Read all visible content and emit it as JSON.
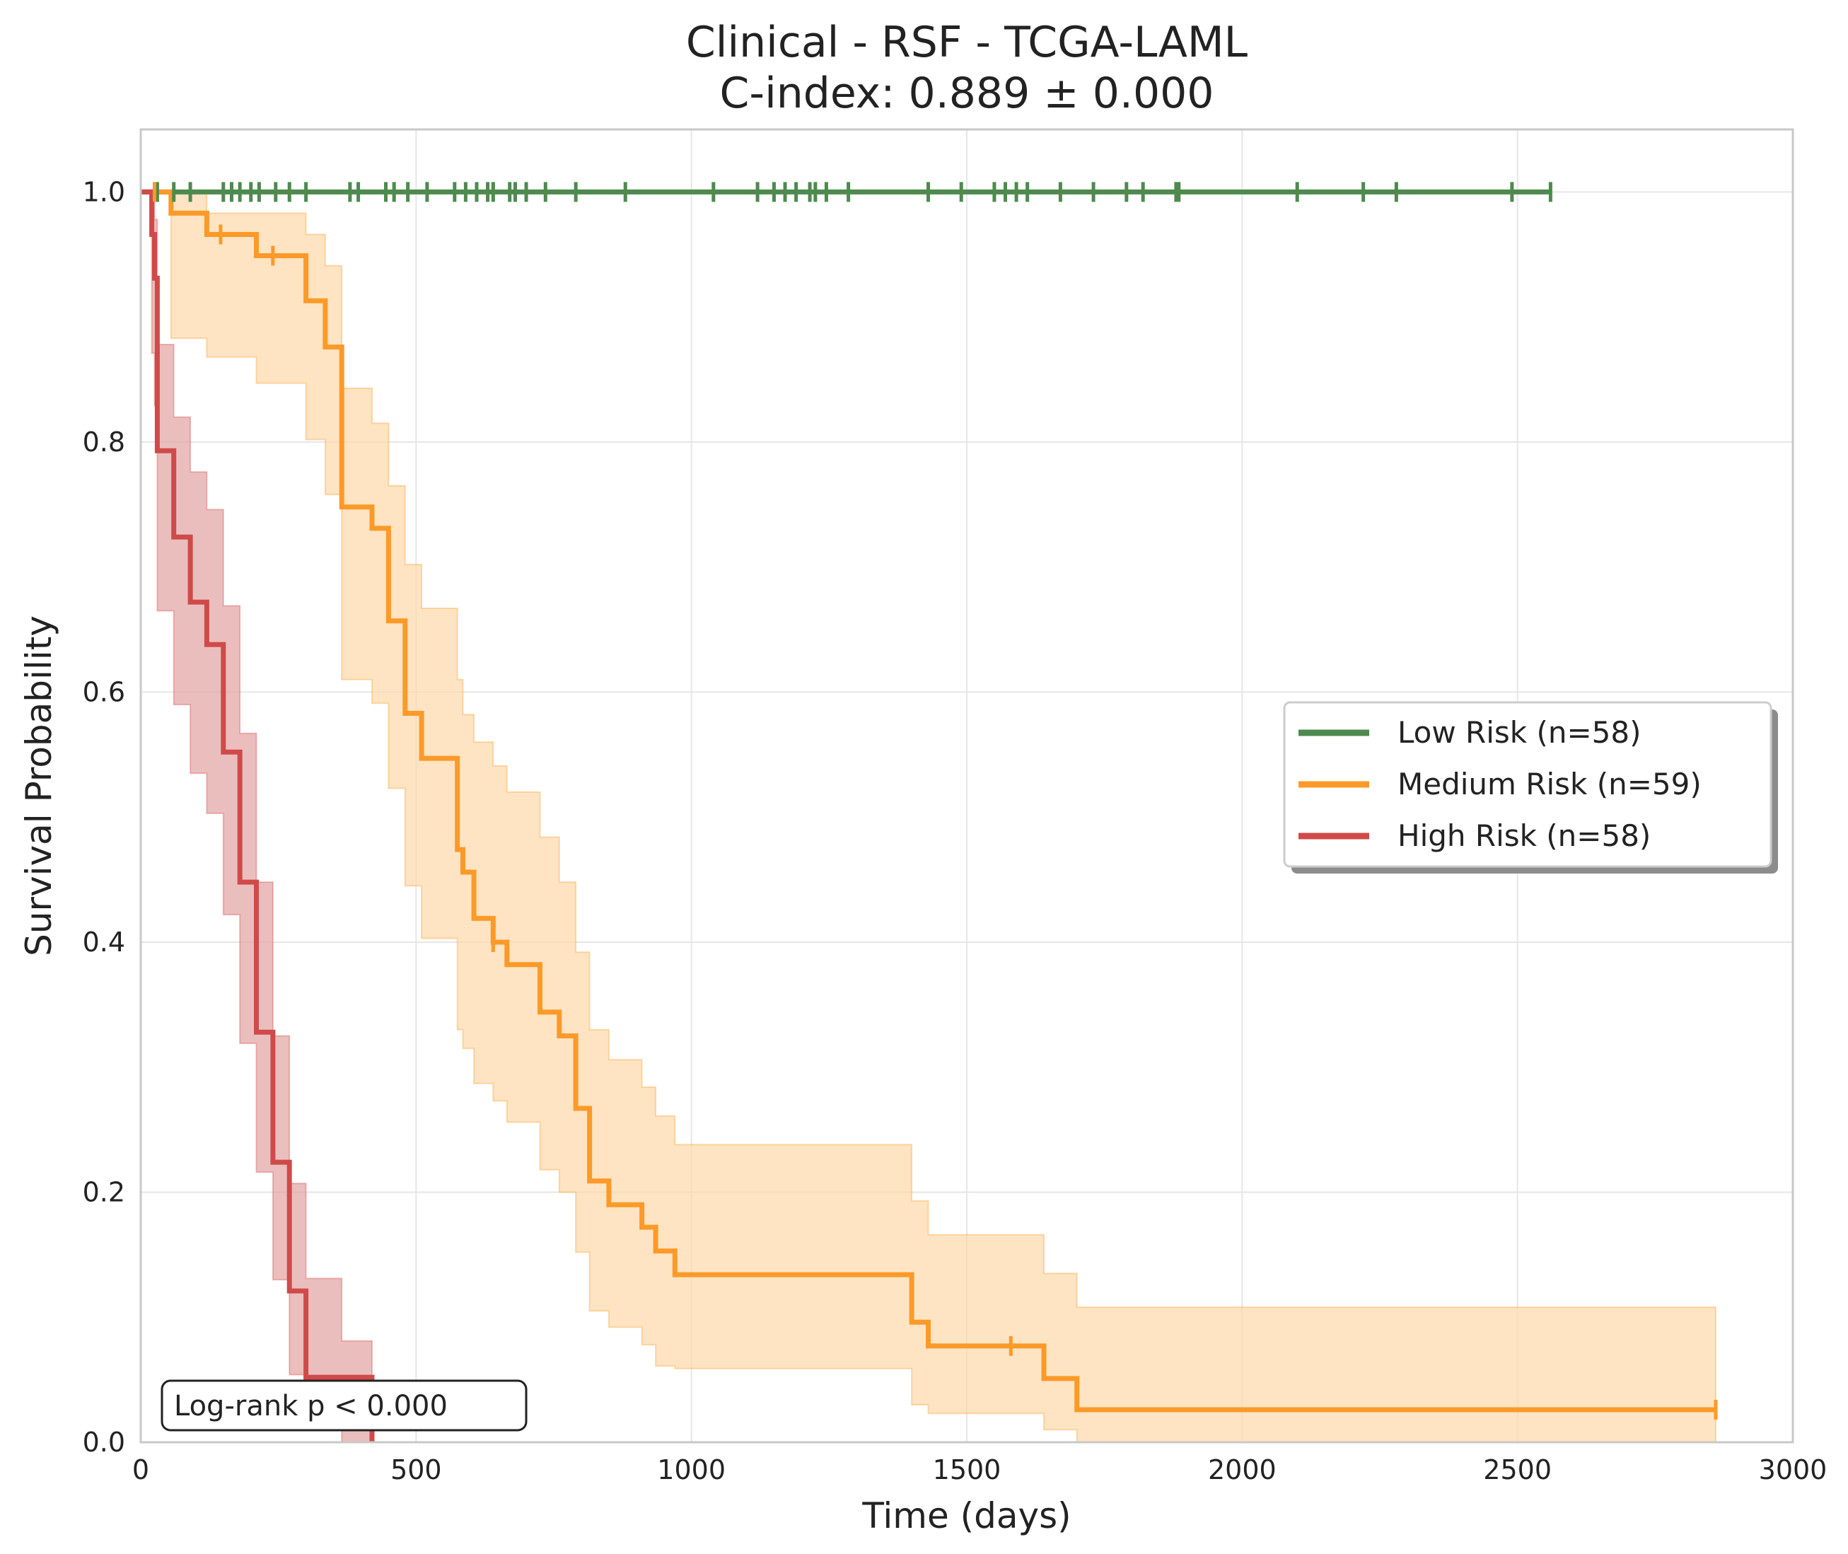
{
  "chart_data": {
    "type": "line",
    "subtype": "kaplan-meier step curves with confidence bands",
    "title": "Clinical - RSF - TCGA-LAML",
    "subtitle": "C-index: 0.889 ± 0.000",
    "xlabel": "Time (days)",
    "ylabel": "Survival Probability",
    "xlim": [
      0,
      3000
    ],
    "ylim": [
      0,
      1.05
    ],
    "x_ticks": [
      0,
      500,
      1000,
      1500,
      2000,
      2500,
      3000
    ],
    "y_ticks": [
      0.0,
      0.2,
      0.4,
      0.6,
      0.8,
      1.0
    ],
    "x_tick_labels": [
      "0",
      "500",
      "1000",
      "1500",
      "2000",
      "2500",
      "3000"
    ],
    "y_tick_labels": [
      "0.0",
      "0.2",
      "0.4",
      "0.6",
      "0.8",
      "1.0"
    ],
    "grid": true,
    "legend_position": "center-right",
    "annotation": "Log-rank p < 0.000",
    "series": [
      {
        "name": "Low Risk (n=58)",
        "color": "#4e8a4e",
        "band_color": "#4e8a4e",
        "steps": [
          [
            0,
            1.0
          ],
          [
            2560,
            1.0
          ]
        ],
        "ci_upper": [],
        "ci_lower": [],
        "censor_times": [
          30,
          60,
          90,
          150,
          165,
          180,
          200,
          215,
          245,
          270,
          300,
          380,
          395,
          445,
          460,
          485,
          520,
          570,
          590,
          610,
          630,
          640,
          670,
          680,
          700,
          735,
          790,
          880,
          1040,
          1120,
          1150,
          1170,
          1190,
          1215,
          1225,
          1245,
          1285,
          1430,
          1490,
          1550,
          1570,
          1590,
          1610,
          1670,
          1730,
          1790,
          1820,
          1880,
          1885,
          2100,
          2220,
          2280,
          2490,
          2560
        ]
      },
      {
        "name": "Medium Risk (n=59)",
        "color": "#fb9a29",
        "band_color": "#fdd9a8",
        "steps": [
          [
            0,
            1.0
          ],
          [
            55,
            0.983
          ],
          [
            120,
            0.966
          ],
          [
            210,
            0.949
          ],
          [
            300,
            0.913
          ],
          [
            335,
            0.876
          ],
          [
            365,
            0.748
          ],
          [
            420,
            0.731
          ],
          [
            450,
            0.657
          ],
          [
            480,
            0.583
          ],
          [
            510,
            0.547
          ],
          [
            575,
            0.474
          ],
          [
            585,
            0.456
          ],
          [
            605,
            0.419
          ],
          [
            640,
            0.4
          ],
          [
            665,
            0.382
          ],
          [
            725,
            0.344
          ],
          [
            760,
            0.325
          ],
          [
            790,
            0.267
          ],
          [
            815,
            0.209
          ],
          [
            850,
            0.19
          ],
          [
            910,
            0.172
          ],
          [
            935,
            0.153
          ],
          [
            970,
            0.134
          ],
          [
            1400,
            0.096
          ],
          [
            1430,
            0.077
          ],
          [
            1640,
            0.051
          ],
          [
            1700,
            0.026
          ],
          [
            2860,
            0.026
          ]
        ],
        "ci_upper": [
          [
            0,
            1.0
          ],
          [
            55,
            1.0
          ],
          [
            120,
            0.983
          ],
          [
            210,
            0.983
          ],
          [
            300,
            0.966
          ],
          [
            335,
            0.941
          ],
          [
            365,
            0.843
          ],
          [
            420,
            0.815
          ],
          [
            450,
            0.765
          ],
          [
            480,
            0.702
          ],
          [
            510,
            0.667
          ],
          [
            575,
            0.61
          ],
          [
            585,
            0.582
          ],
          [
            605,
            0.56
          ],
          [
            640,
            0.541
          ],
          [
            665,
            0.52
          ],
          [
            725,
            0.484
          ],
          [
            760,
            0.448
          ],
          [
            790,
            0.392
          ],
          [
            815,
            0.33
          ],
          [
            850,
            0.306
          ],
          [
            910,
            0.284
          ],
          [
            935,
            0.261
          ],
          [
            970,
            0.238
          ],
          [
            1400,
            0.193
          ],
          [
            1430,
            0.166
          ],
          [
            1640,
            0.135
          ],
          [
            1700,
            0.108
          ],
          [
            2860,
            0.108
          ]
        ],
        "ci_lower": [
          [
            0,
            1.0
          ],
          [
            55,
            0.883
          ],
          [
            120,
            0.868
          ],
          [
            210,
            0.847
          ],
          [
            300,
            0.802
          ],
          [
            335,
            0.758
          ],
          [
            365,
            0.61
          ],
          [
            420,
            0.591
          ],
          [
            450,
            0.523
          ],
          [
            480,
            0.445
          ],
          [
            510,
            0.403
          ],
          [
            575,
            0.33
          ],
          [
            585,
            0.315
          ],
          [
            605,
            0.287
          ],
          [
            640,
            0.273
          ],
          [
            665,
            0.256
          ],
          [
            725,
            0.218
          ],
          [
            760,
            0.2
          ],
          [
            790,
            0.152
          ],
          [
            815,
            0.105
          ],
          [
            850,
            0.092
          ],
          [
            910,
            0.078
          ],
          [
            935,
            0.061
          ],
          [
            970,
            0.059
          ],
          [
            1400,
            0.03
          ],
          [
            1430,
            0.023
          ],
          [
            1640,
            0.01
          ],
          [
            1700,
            0.0
          ],
          [
            2860,
            0.0
          ]
        ],
        "censor_times": [
          25,
          145,
          240,
          640,
          1580,
          2860
        ]
      },
      {
        "name": "High Risk (n=58)",
        "color": "#d04a4a",
        "band_color": "#e3a3a3",
        "steps": [
          [
            0,
            1.0
          ],
          [
            20,
            0.966
          ],
          [
            25,
            0.931
          ],
          [
            30,
            0.793
          ],
          [
            60,
            0.724
          ],
          [
            90,
            0.672
          ],
          [
            120,
            0.638
          ],
          [
            150,
            0.552
          ],
          [
            180,
            0.448
          ],
          [
            210,
            0.328
          ],
          [
            240,
            0.224
          ],
          [
            270,
            0.121
          ],
          [
            300,
            0.052
          ],
          [
            365,
            0.052
          ],
          [
            420,
            0.0
          ]
        ],
        "ci_upper": [
          [
            0,
            1.0
          ],
          [
            20,
            0.995
          ],
          [
            25,
            0.978
          ],
          [
            30,
            0.878
          ],
          [
            60,
            0.82
          ],
          [
            90,
            0.776
          ],
          [
            120,
            0.746
          ],
          [
            150,
            0.669
          ],
          [
            180,
            0.567
          ],
          [
            210,
            0.448
          ],
          [
            240,
            0.325
          ],
          [
            270,
            0.207
          ],
          [
            300,
            0.131
          ],
          [
            365,
            0.081
          ],
          [
            420,
            0.081
          ]
        ],
        "ci_lower": [
          [
            0,
            1.0
          ],
          [
            20,
            0.871
          ],
          [
            25,
            0.829
          ],
          [
            30,
            0.665
          ],
          [
            60,
            0.59
          ],
          [
            90,
            0.535
          ],
          [
            120,
            0.503
          ],
          [
            150,
            0.422
          ],
          [
            180,
            0.319
          ],
          [
            210,
            0.216
          ],
          [
            240,
            0.13
          ],
          [
            270,
            0.054
          ],
          [
            300,
            0.014
          ],
          [
            365,
            0.0
          ],
          [
            420,
            0.0
          ]
        ],
        "censor_times": []
      }
    ]
  }
}
